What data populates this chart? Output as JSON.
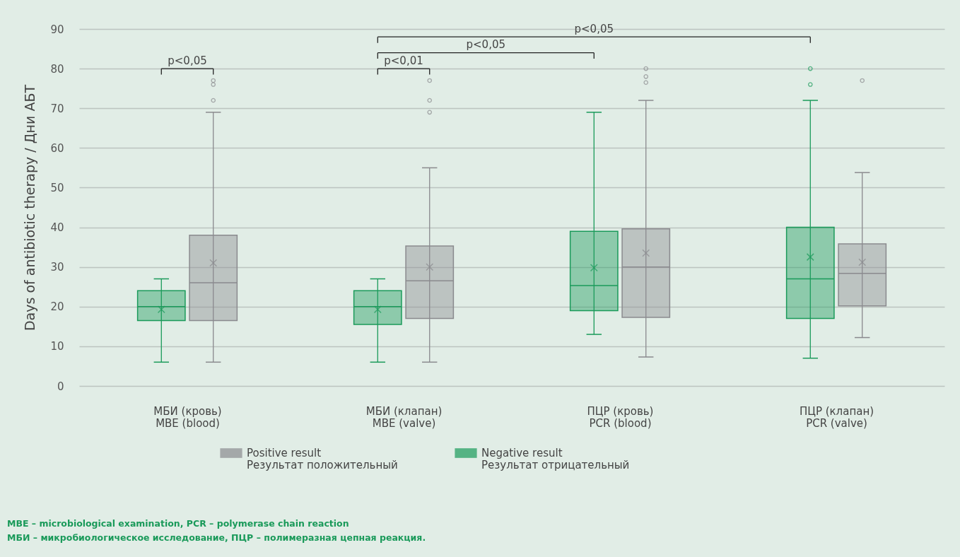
{
  "chart_data": {
    "type": "box",
    "ylabel": "Days of antibiotic therapy / Дни АБТ",
    "categories": [
      "МБИ (кровь)\nMBE (blood)",
      "МБИ (клапан)\nMBE (valve)",
      "ПЦР (кровь)\nPCR (blood)",
      "ПЦР (клапан)\nPCR (valve)"
    ],
    "series": [
      {
        "name": "Positive result\nРезультат положительный",
        "color": "#8a8a8e",
        "boxes": [
          {
            "low": 6,
            "q1": 16.5,
            "median": 26,
            "q3": 38,
            "high": 69,
            "mean": 31,
            "outliers": [
              72,
              76,
              77
            ]
          },
          {
            "low": 6,
            "q1": 17,
            "median": 26.5,
            "q3": 35.3,
            "high": 55,
            "mean": 30,
            "outliers": [
              69,
              72,
              77
            ]
          },
          {
            "low": 7.3,
            "q1": 17.3,
            "median": 30,
            "q3": 39.6,
            "high": 72,
            "mean": 33.5,
            "outliers": [
              76.5,
              78,
              80
            ]
          },
          {
            "low": 12.2,
            "q1": 20.2,
            "median": 28.4,
            "q3": 35.8,
            "high": 53.8,
            "mean": 31.2,
            "outliers": [
              77
            ]
          }
        ]
      },
      {
        "name": "Negative result\nРезультат отрицательный",
        "color": "#1a9a5a",
        "boxes": [
          {
            "low": 6,
            "q1": 16.5,
            "median": 20,
            "q3": 24,
            "high": 27,
            "mean": 19.3
          },
          {
            "low": 6,
            "q1": 15.5,
            "median": 20,
            "q3": 24,
            "high": 27,
            "mean": 19.3
          },
          {
            "low": 13,
            "q1": 19,
            "median": 25.3,
            "q3": 39,
            "high": 69,
            "mean": 29.8
          },
          {
            "low": 7,
            "q1": 17,
            "median": 27,
            "q3": 40,
            "high": 72,
            "mean": 32.5,
            "outliers": [
              76,
              80
            ]
          }
        ]
      }
    ],
    "ylim": [
      0,
      90
    ],
    "yticks": [
      0,
      10,
      20,
      30,
      40,
      50,
      60,
      70,
      80,
      90
    ],
    "grid": "y",
    "legend": "bottom",
    "annotations": [
      "p<0,05",
      "p<0,01",
      "p<0,05",
      "p<0,05",
      "MBE – microbiological examination, PCR – polymerase chain reaction",
      "МБИ – микробиологическое исследование, ПЦР – полимеразная цепная реакция."
    ]
  }
}
